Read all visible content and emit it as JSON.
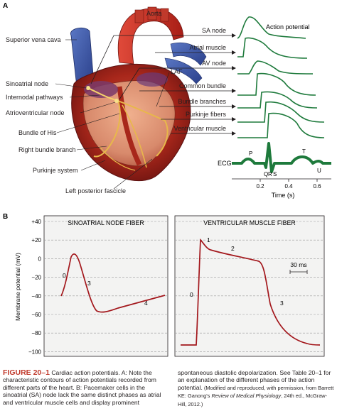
{
  "panel_a": {
    "letter": "A",
    "heart_labels": {
      "aorta": "Aorta",
      "superior_vena_cava": "Superior vena cava",
      "sinoatrial_node": "Sinoatrial node",
      "internodal_pathways": "Internodal pathways",
      "atrioventricular_node": "Atrioventricular node",
      "bundle_of_his": "Bundle of His",
      "right_bundle_branch": "Right bundle branch",
      "purkinje_system": "Purkinje system",
      "left_posterior_fascicle": "Left posterior fascicle",
      "laf": "LAF"
    },
    "trace_title": "Action potential",
    "trace_labels": [
      "SA node",
      "Atrial muscle",
      "AV node",
      "Common bundle",
      "Bundle branches",
      "Purkinje fibers",
      "Ventricular muscle"
    ],
    "ecg": {
      "label": "ECG",
      "waves": [
        "P",
        "Q",
        "R",
        "S",
        "T",
        "U"
      ],
      "ticks": [
        "0.2",
        "0.4",
        "0.6"
      ],
      "axis_label": "Time (s)"
    }
  },
  "panel_b": {
    "letter": "B",
    "y_ticks": [
      "+40",
      "+20",
      "0",
      "−20",
      "−40",
      "−60",
      "−80",
      "−100"
    ],
    "y_label": "Membrane potential (mV)",
    "sa_title": "SINOATRIAL NODE FIBER",
    "sa_phases": [
      "0",
      "3",
      "4"
    ],
    "vm_title": "VENTRICULAR MUSCLE FIBER",
    "vm_phases": [
      "0",
      "1",
      "2",
      "3"
    ],
    "scale_bar": "30 ms"
  },
  "caption": {
    "figure_label": "FIGURE 20–1",
    "col1_text": " Cardiac action potentials. A: Note the characteristic contours of action potentials recorded from different parts of the heart. B: Pacemaker cells in the sinoatrial (SA) node lack the same distinct phases as atrial and ventricular muscle cells and display prominent",
    "col2_text": "spontaneous diastolic depolarization. See Table 20–1 for an explanation of the different phases of the action potential.",
    "credit_pre": " (Modified and reproduced, with permission, from Barrett KE: Ganong's ",
    "credit_title": "Review of Medical Physiology",
    "credit_post": ", 24th ed., McGraw-Hill, 2012.)"
  },
  "colors": {
    "trace_green": "#1e7a3c",
    "sb_red": "#a3171c",
    "panel_b_bg": "#f3f3f2",
    "figure_label": "#c0392b"
  }
}
